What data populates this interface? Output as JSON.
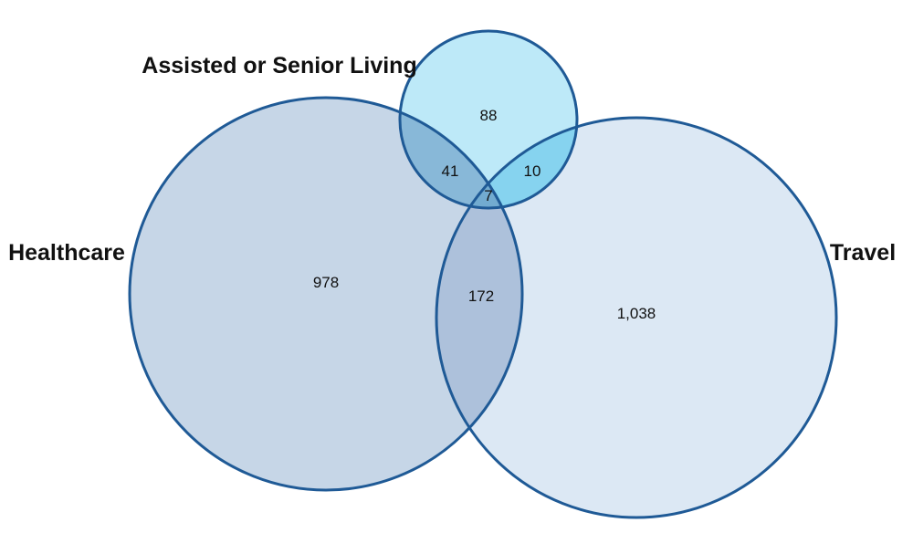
{
  "sets": {
    "healthcare": {
      "label": "Healthcare",
      "fill": "#c6d6e7"
    },
    "travel": {
      "label": "Travel",
      "fill": "#dce8f4"
    },
    "assisted": {
      "label": "Assisted or Senior Living",
      "fill": "#bde9f8"
    }
  },
  "regions": {
    "healthcare_only": "978",
    "travel_only": "1,038",
    "assisted_only": "88",
    "healthcare_travel": "172",
    "healthcare_assisted": "41",
    "travel_assisted": "10",
    "all_three": "7"
  },
  "colors": {
    "outline": "#1f5a96",
    "healthcare_travel_overlap": "#adc1db",
    "healthcare_assisted_overlap": "#88b8d8",
    "travel_assisted_overlap": "#86d3ef",
    "all_three_overlap": "#72abd0"
  }
}
